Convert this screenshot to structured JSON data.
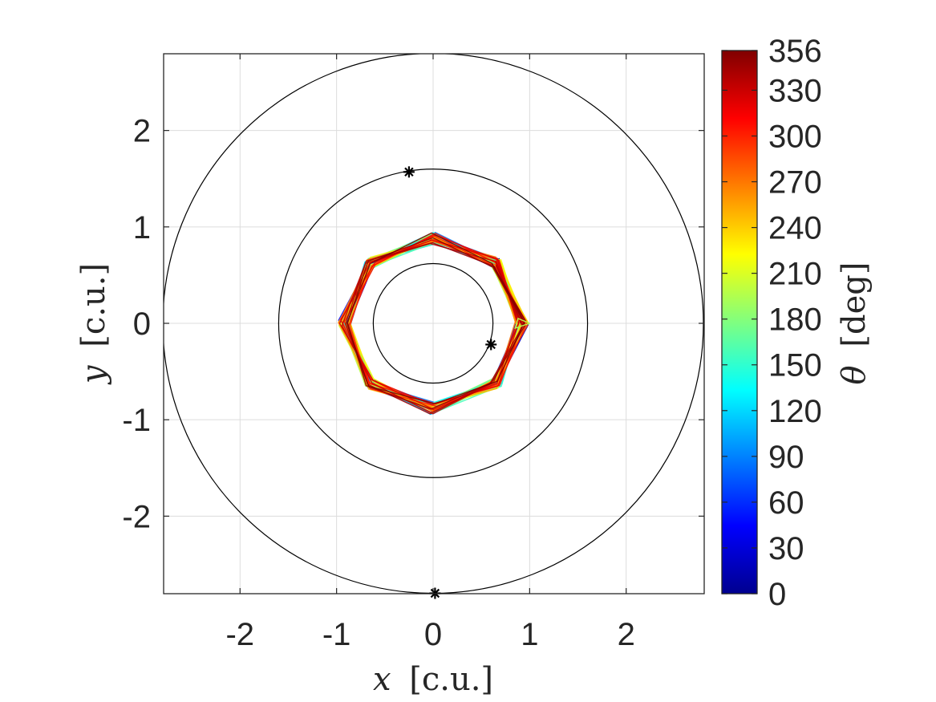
{
  "chart_data": {
    "type": "line",
    "xlabel_var": "x",
    "xlabel_unit": "[c.u.]",
    "ylabel_var": "y",
    "ylabel_unit": "[c.u.]",
    "xlim": [
      -2.8,
      2.8
    ],
    "ylim": [
      -2.8,
      2.8
    ],
    "x_ticks": [
      -2,
      -1,
      0,
      1,
      2
    ],
    "y_ticks": [
      -2,
      -1,
      0,
      1,
      2
    ],
    "x_tick_labels": [
      "-2",
      "-1",
      "0",
      "1",
      "2"
    ],
    "y_tick_labels": [
      "-2",
      "-1",
      "0",
      "1",
      "2"
    ],
    "grid": true,
    "reference_circles": [
      {
        "radius": 0.62
      },
      {
        "radius": 1.6
      },
      {
        "radius": 2.8
      }
    ],
    "markers": [
      {
        "x": -0.25,
        "y": 1.57,
        "symbol": "*"
      },
      {
        "x": 0.6,
        "y": -0.22,
        "symbol": "*"
      },
      {
        "x": 0.02,
        "y": -2.8,
        "symbol": "*"
      }
    ],
    "trajectory": {
      "description_color_variable": "theta",
      "mean_radius": 0.92,
      "start_point": [
        1.0,
        0.0
      ],
      "theta_range": [
        0,
        356
      ]
    },
    "colorbar": {
      "label_var": "θ",
      "label_unit": "[deg]",
      "min": 0,
      "max": 356,
      "ticks": [
        0,
        30,
        60,
        90,
        120,
        150,
        180,
        210,
        240,
        270,
        300,
        330,
        356
      ],
      "tick_labels": [
        "0",
        "30",
        "60",
        "90",
        "120",
        "150",
        "180",
        "210",
        "240",
        "270",
        "300",
        "330",
        "356"
      ],
      "colormap": "jet"
    }
  }
}
